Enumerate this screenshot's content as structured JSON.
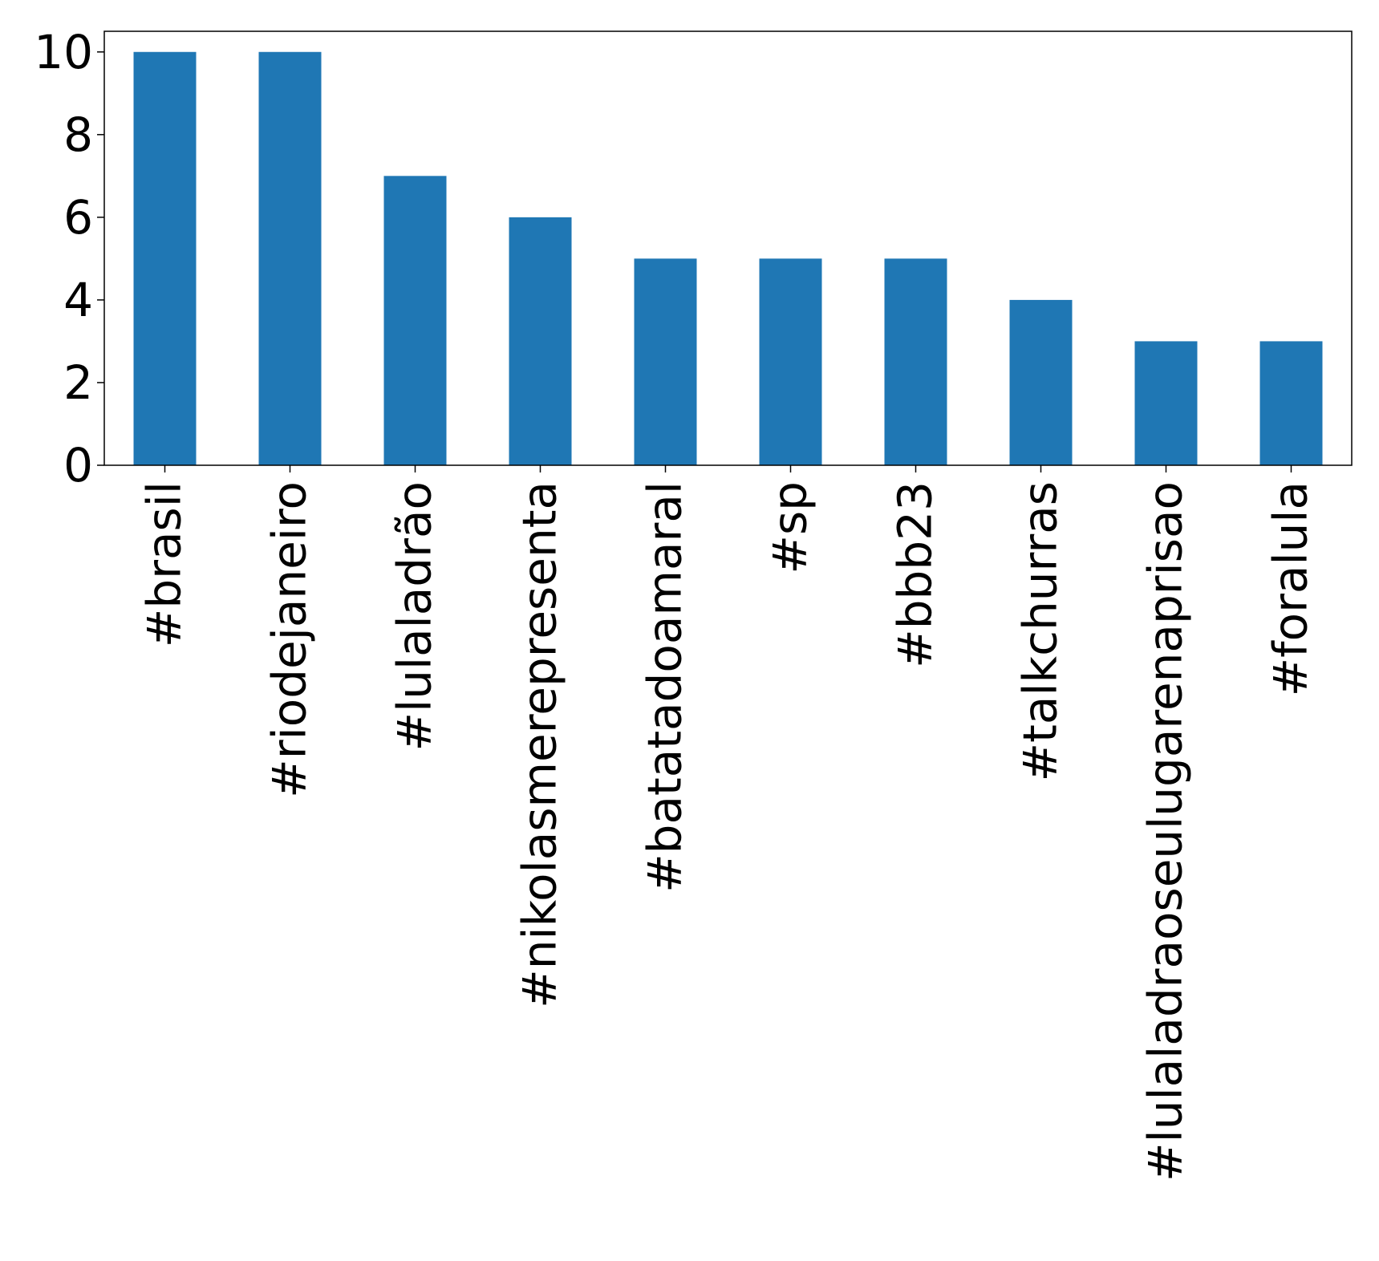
{
  "chart_data": {
    "type": "bar",
    "title": "",
    "xlabel": "",
    "ylabel": "",
    "categories": [
      "#brasil",
      "#riodejaneiro",
      "#lulaladrão",
      "#nikolasmerepresenta",
      "#batatadoamaral",
      "#sp",
      "#bbb23",
      "#talkchurras",
      "#lulaladraoseulugarenaprisao",
      "#foralula"
    ],
    "values": [
      10,
      10,
      7,
      6,
      5,
      5,
      5,
      4,
      3,
      3
    ],
    "ylim": [
      0,
      10.5
    ],
    "yticks": [
      0,
      2,
      4,
      6,
      8,
      10
    ],
    "grid": false,
    "legend": "none",
    "bar_color": "#1f77b4"
  }
}
